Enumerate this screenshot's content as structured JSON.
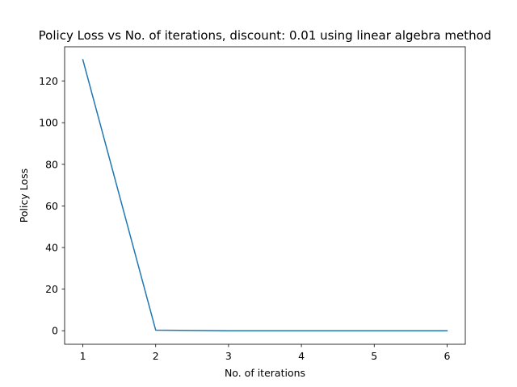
{
  "chart_data": {
    "type": "line",
    "title": "Policy Loss vs No. of iterations, discount: 0.01 using linear algebra method",
    "xlabel": "No. of iterations",
    "ylabel": "Policy Loss",
    "xlim": [
      0.75,
      6.25
    ],
    "ylim": [
      -6.5,
      136.5
    ],
    "xticks": [
      1,
      2,
      3,
      4,
      5,
      6
    ],
    "yticks": [
      0,
      20,
      40,
      60,
      80,
      100,
      120
    ],
    "grid": false,
    "series": [
      {
        "color": "#1f77b4",
        "x": [
          1,
          2,
          3,
          4,
          5,
          6
        ],
        "y": [
          130.3,
          0.3,
          0.0,
          0.0,
          0.0,
          0.0
        ]
      }
    ]
  }
}
